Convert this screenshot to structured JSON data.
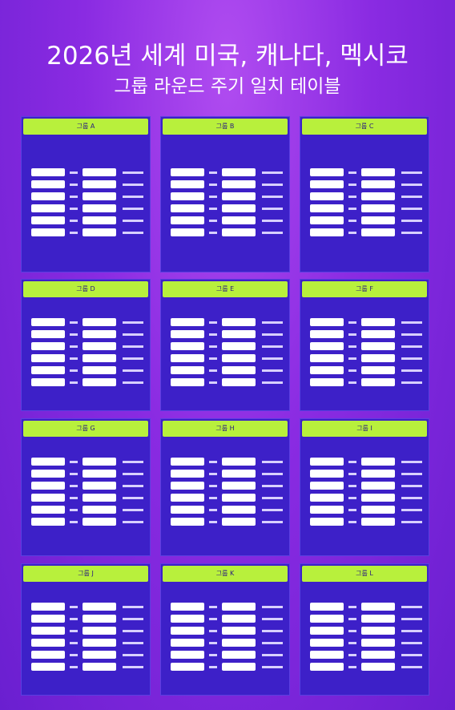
{
  "header": {
    "title": "2026년 세계 미국, 캐나다, 멕시코",
    "subtitle": "그룹 라운드 주기 일치 테이블"
  },
  "groups": [
    {
      "title": "그룹 A"
    },
    {
      "title": "그룹 B"
    },
    {
      "title": "그룹 C"
    },
    {
      "title": "그룹 D"
    },
    {
      "title": "그룹 E"
    },
    {
      "title": "그룹 F"
    },
    {
      "title": "그룹 G"
    },
    {
      "title": "그룹 H"
    },
    {
      "title": "그룹 I"
    },
    {
      "title": "그룹 J"
    },
    {
      "title": "그룹 K"
    },
    {
      "title": "그룹 L"
    }
  ]
}
